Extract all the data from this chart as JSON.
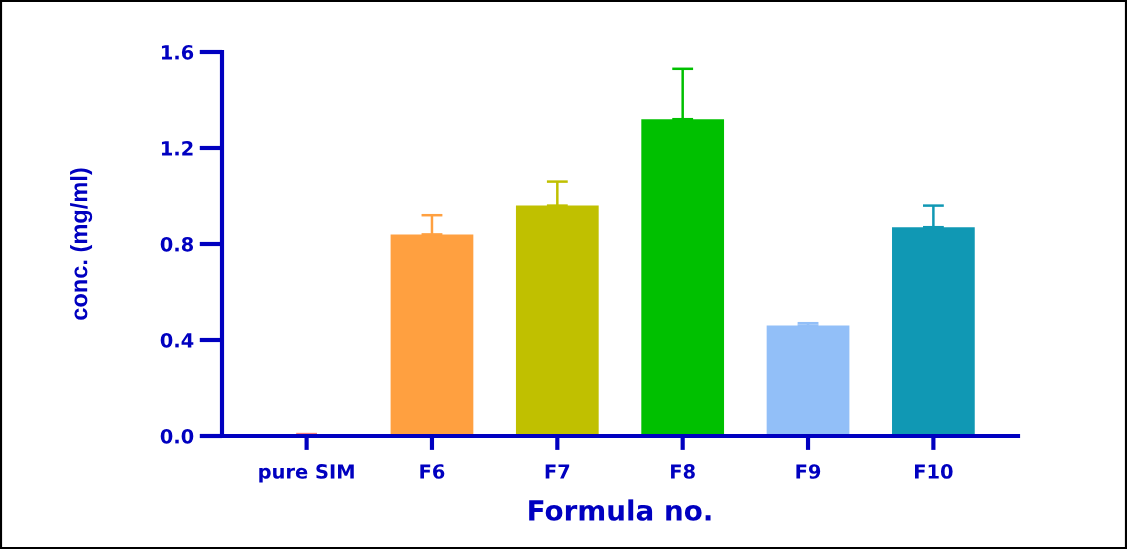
{
  "chart_data": {
    "type": "bar",
    "xlabel": "Formula no.",
    "ylabel": "conc. (mg/ml)",
    "categories": [
      "pure SIM",
      "F6",
      "F7",
      "F8",
      "F9",
      "F10"
    ],
    "values": [
      0.004,
      0.84,
      0.96,
      1.32,
      0.46,
      0.87
    ],
    "errors": [
      [
        0.004,
        0.008
      ],
      [
        0.84,
        0.92
      ],
      [
        0.96,
        1.06
      ],
      [
        1.32,
        1.53
      ],
      [
        0.46,
        0.47
      ],
      [
        0.87,
        0.96
      ]
    ],
    "colors": [
      "#f08080",
      "#ffa040",
      "#c0c000",
      "#00c000",
      "#92bff8",
      "#1098b4"
    ],
    "ylim": [
      0,
      1.6
    ],
    "yticks": [
      {
        "value": 0,
        "label": "0.0"
      },
      0.4,
      0.8,
      1.2,
      1.6
    ]
  }
}
